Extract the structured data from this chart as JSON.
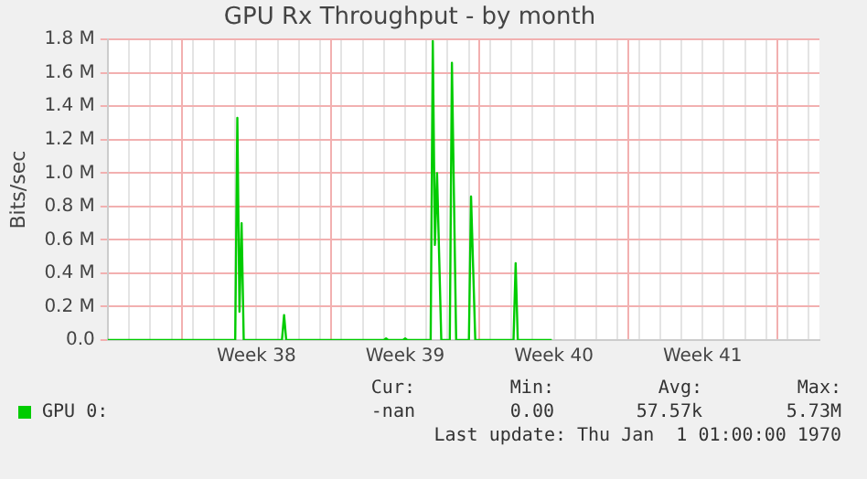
{
  "chart_data": {
    "type": "line",
    "title": "GPU Rx Throughput - by month",
    "ylabel": "Bits/sec",
    "categories": [
      null,
      null,
      null,
      null,
      null,
      null,
      null,
      null,
      null,
      null,
      null,
      null,
      null,
      null,
      null,
      null,
      null,
      null,
      null,
      null,
      null,
      null,
      null,
      null,
      null,
      null,
      null,
      null,
      null,
      null,
      null,
      null,
      null,
      null,
      null,
      null,
      null,
      null,
      null,
      null,
      null,
      null,
      null,
      null,
      null,
      null,
      null,
      null,
      null,
      null,
      null,
      null,
      null,
      null,
      null,
      null,
      null,
      null,
      null,
      null,
      null,
      null,
      null,
      null,
      null,
      null,
      null,
      null,
      null,
      null,
      "Week 38",
      null,
      null,
      null,
      null,
      null,
      null,
      null,
      null,
      null,
      null,
      null,
      null,
      null,
      null,
      null,
      null,
      null,
      null,
      null,
      null,
      null,
      null,
      null,
      null,
      null,
      null,
      null,
      null,
      null,
      null,
      null,
      null,
      null,
      null,
      null,
      null,
      null,
      null,
      null,
      null,
      null,
      null,
      null,
      null,
      null,
      null,
      null,
      null,
      null,
      null,
      null,
      null,
      null,
      null,
      null,
      null,
      null,
      null,
      null,
      null,
      null,
      null,
      null,
      null,
      null,
      null,
      null,
      null,
      null,
      "Week 39",
      null,
      null,
      null,
      null,
      null,
      null,
      null,
      null,
      null,
      null,
      null,
      null,
      null,
      null,
      null,
      null,
      null,
      null,
      null,
      null,
      null,
      null,
      null,
      null,
      null,
      null,
      null,
      null,
      null,
      null,
      null,
      null,
      null,
      null,
      null,
      null,
      null,
      null,
      null,
      null,
      null,
      null,
      null,
      null,
      null,
      null,
      null,
      null,
      null,
      null,
      null,
      null,
      null,
      null,
      null,
      null,
      null,
      null,
      null,
      null,
      null,
      null,
      null,
      null,
      null,
      null,
      null,
      null,
      null,
      "Week 40",
      null,
      null,
      null,
      null,
      null,
      null,
      null,
      null,
      null,
      null,
      null,
      null,
      null,
      null,
      null,
      null,
      null,
      null,
      null,
      null,
      null,
      null,
      null,
      null,
      null,
      null,
      null,
      null,
      null,
      null,
      null,
      null,
      null,
      null,
      null,
      null,
      null,
      null,
      null,
      null,
      null,
      null,
      null,
      null,
      null,
      null,
      null,
      null,
      null,
      null,
      null,
      null,
      null,
      null,
      null,
      null,
      null,
      null,
      null,
      null,
      null,
      null,
      null,
      null,
      null,
      null,
      null,
      null,
      null,
      "Week 41",
      null,
      null,
      null,
      null,
      null,
      null,
      null,
      null,
      null,
      null,
      null,
      null,
      null,
      null,
      null,
      null,
      null,
      null,
      null,
      null,
      null,
      null,
      null,
      null,
      null,
      null,
      null,
      null,
      null,
      null,
      null,
      null,
      null,
      null,
      null,
      null,
      null,
      null,
      null,
      null,
      null,
      null,
      null,
      null,
      null,
      null,
      null,
      null,
      null,
      null,
      null,
      null,
      null,
      null,
      null
    ],
    "series": [
      {
        "name": "GPU 0:",
        "color": "#00cc00",
        "values": [
          0,
          0,
          0,
          0,
          0,
          0,
          0,
          0,
          0,
          0,
          0,
          0,
          0,
          0,
          0,
          0,
          0,
          0,
          0,
          0,
          0,
          0,
          0,
          0,
          0,
          0,
          0,
          0,
          0,
          0,
          0,
          0,
          0,
          0,
          0,
          0,
          0,
          0,
          0,
          0,
          0,
          0,
          0,
          0,
          0,
          0,
          0,
          0,
          0,
          0,
          0,
          0,
          0,
          0,
          0,
          0,
          0,
          0,
          0,
          0,
          0,
          1.33,
          0.17,
          0.7,
          0,
          0,
          0,
          0,
          0,
          0,
          0,
          0,
          0,
          0,
          0,
          0,
          0,
          0,
          0,
          0,
          0,
          0,
          0,
          0.15,
          0,
          0,
          0,
          0,
          0,
          0,
          0,
          0,
          0,
          0,
          0,
          0,
          0,
          0,
          0,
          0,
          0,
          0,
          0,
          0,
          0,
          0,
          0,
          0,
          0,
          0,
          0,
          0,
          0,
          0,
          0,
          0,
          0,
          0,
          0,
          0,
          0,
          0,
          0,
          0,
          0,
          0,
          0,
          0,
          0,
          0,
          0,
          0.01,
          0,
          0,
          0,
          0,
          0,
          0,
          0,
          0,
          0.01,
          0,
          0,
          0,
          0,
          0,
          0,
          0,
          0,
          0,
          0,
          0,
          0,
          1.79,
          0.57,
          1.0,
          0.5,
          0,
          0,
          0,
          0,
          0,
          1.66,
          0.83,
          0,
          0,
          0,
          0,
          0,
          0,
          0,
          0.86,
          0.43,
          0,
          0,
          0,
          0,
          0,
          0,
          0,
          0,
          0,
          0,
          0,
          0,
          0,
          0,
          0,
          0,
          0,
          0,
          0,
          0.46,
          0,
          0,
          0,
          0,
          0,
          0,
          0,
          0,
          0,
          0,
          0,
          0,
          0,
          0,
          0,
          0,
          0,
          null,
          null,
          null,
          null,
          null,
          null,
          null,
          null,
          null,
          null,
          null,
          null,
          null,
          null,
          null,
          null,
          null,
          null,
          null,
          null,
          null,
          null,
          null,
          null,
          null,
          null,
          null,
          null,
          null,
          null,
          null,
          null,
          null,
          null,
          null,
          null,
          null,
          null,
          null,
          null,
          null,
          null,
          null,
          null,
          null,
          null,
          null,
          null,
          null,
          null,
          null,
          null,
          null,
          null,
          null,
          null,
          null,
          null,
          null,
          null,
          null,
          null,
          null,
          null,
          null,
          null,
          null,
          null,
          null,
          null,
          null,
          null,
          null,
          null,
          null,
          null,
          null,
          null,
          null,
          null,
          null,
          null,
          null,
          null,
          null,
          null,
          null,
          null,
          null,
          null,
          null,
          null,
          null,
          null,
          null,
          null,
          null,
          null,
          null,
          null,
          null,
          null,
          null,
          null,
          null,
          null,
          null,
          null,
          null,
          null,
          null,
          null,
          null,
          null,
          null,
          null,
          null,
          null,
          null,
          null,
          null,
          null,
          null,
          null,
          null,
          null
        ]
      }
    ],
    "ylim": [
      0,
      1.8
    ],
    "yticks": [
      {
        "value": 0,
        "label": "0.0"
      },
      {
        "value": 0.2,
        "label": "0.2 M"
      },
      {
        "value": 0.4,
        "label": "0.4 M"
      },
      {
        "value": 0.6,
        "label": "0.6 M"
      },
      {
        "value": 0.8,
        "label": "0.8 M"
      },
      {
        "value": 1.0,
        "label": "1.0 M"
      },
      {
        "value": 1.2,
        "label": "1.2 M"
      },
      {
        "value": 1.4,
        "label": "1.4 M"
      },
      {
        "value": 1.6,
        "label": "1.6 M"
      },
      {
        "value": 1.8,
        "label": "1.8 M"
      }
    ],
    "grid": true,
    "legend": "bottom",
    "marker": "none",
    "line_style": "solid",
    "annotations": [
      "Cur:",
      "-nan",
      "Min:",
      "0.00",
      "Avg:",
      "57.57k",
      "Max:",
      "5.73M",
      "Last update: Thu Jan  1 01:00:00 1970"
    ]
  }
}
